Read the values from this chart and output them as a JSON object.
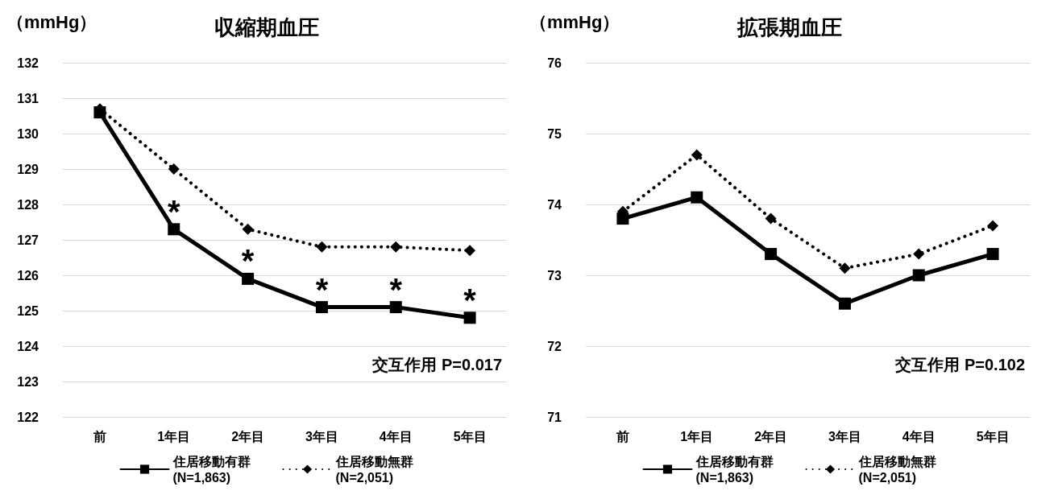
{
  "chart_data": [
    {
      "type": "line",
      "title": "収縮期血圧",
      "ylabel": "（mmHg）",
      "categories": [
        "前",
        "1年目",
        "2年目",
        "3年目",
        "4年目",
        "5年目"
      ],
      "ylim": [
        122,
        132
      ],
      "yticks": [
        122,
        123,
        124,
        125,
        126,
        127,
        128,
        129,
        130,
        131,
        132
      ],
      "grid": "y",
      "legend": "bottom",
      "series": [
        {
          "name": "住居移動有群\n(N=1,863)",
          "color": "#000000",
          "marker": "square",
          "line_style": "solid",
          "values": [
            130.6,
            127.3,
            125.9,
            125.1,
            125.1,
            124.8
          ]
        },
        {
          "name": "住居移動無群\n(N=2,051)",
          "color": "#000000",
          "marker": "diamond",
          "line_style": "dotted",
          "values": [
            130.7,
            129.0,
            127.3,
            126.8,
            126.8,
            126.7
          ]
        }
      ],
      "annotations": [
        {
          "text": "*",
          "x": "1年目",
          "y": 127.3
        },
        {
          "text": "*",
          "x": "2年目",
          "y": 125.9
        },
        {
          "text": "*",
          "x": "3年目",
          "y": 125.1
        },
        {
          "text": "*",
          "x": "4年目",
          "y": 125.1
        },
        {
          "text": "*",
          "x": "5年目",
          "y": 124.8
        },
        "交互作用 P=0.017"
      ]
    },
    {
      "type": "line",
      "title": "拡張期血圧",
      "ylabel": "（mmHg）",
      "categories": [
        "前",
        "1年目",
        "2年目",
        "3年目",
        "4年目",
        "5年目"
      ],
      "ylim": [
        71,
        76
      ],
      "yticks": [
        71,
        72,
        73,
        74,
        75,
        76
      ],
      "grid": "y",
      "legend": "bottom",
      "series": [
        {
          "name": "住居移動有群\n(N=1,863)",
          "color": "#000000",
          "marker": "square",
          "line_style": "solid",
          "values": [
            73.8,
            74.1,
            73.3,
            72.6,
            73.0,
            73.3
          ]
        },
        {
          "name": "住居移動無群\n(N=2,051)",
          "color": "#000000",
          "marker": "diamond",
          "line_style": "dotted",
          "values": [
            73.9,
            74.7,
            73.8,
            73.1,
            73.3,
            73.7
          ]
        }
      ],
      "annotations": [
        "交互作用 P=0.102"
      ]
    }
  ]
}
